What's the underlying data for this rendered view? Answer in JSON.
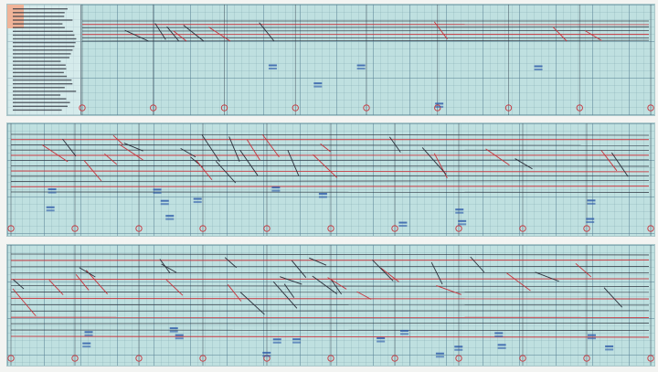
{
  "sheets": [
    {
      "id": "strip-1",
      "legend_rows": 28,
      "hour_marks": 8
    },
    {
      "id": "strip-2",
      "hour_marks": 10
    },
    {
      "id": "strip-3",
      "hour_marks": 10
    }
  ],
  "colors": {
    "paper": "#bfe0e0",
    "train_line_black": "#2b2f3a",
    "train_line_red": "#c8323a",
    "pencil_blue": "#2a57a8",
    "stamp": "#e98a62"
  }
}
